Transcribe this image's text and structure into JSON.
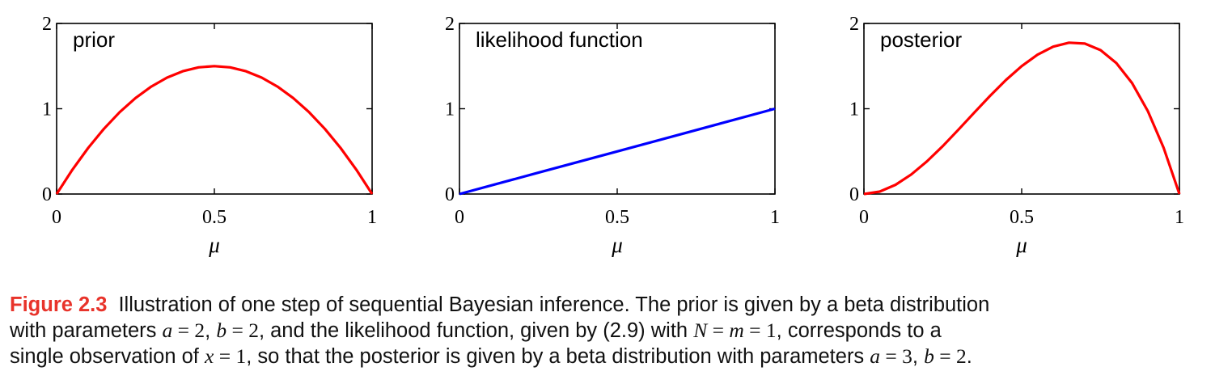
{
  "chart_data": [
    {
      "type": "line",
      "title": "prior",
      "xlabel": "μ",
      "xlim": [
        0,
        1
      ],
      "ylim": [
        0,
        2
      ],
      "xticks": [
        "0",
        "0.5",
        "1"
      ],
      "yticks": [
        "0",
        "1",
        "2"
      ],
      "color": "#ff0000",
      "series": [
        {
          "x": [
            0,
            0.05,
            0.1,
            0.15,
            0.2,
            0.25,
            0.3,
            0.35,
            0.4,
            0.45,
            0.5,
            0.55,
            0.6,
            0.65,
            0.7,
            0.75,
            0.8,
            0.85,
            0.9,
            0.95,
            1
          ],
          "y": [
            0,
            0.285,
            0.54,
            0.765,
            0.96,
            1.125,
            1.26,
            1.365,
            1.44,
            1.485,
            1.5,
            1.485,
            1.44,
            1.365,
            1.26,
            1.125,
            0.96,
            0.765,
            0.54,
            0.285,
            0
          ]
        }
      ]
    },
    {
      "type": "line",
      "title": "likelihood function",
      "xlabel": "μ",
      "xlim": [
        0,
        1
      ],
      "ylim": [
        0,
        2
      ],
      "xticks": [
        "0",
        "0.5",
        "1"
      ],
      "yticks": [
        "0",
        "1",
        "2"
      ],
      "color": "#0000ff",
      "series": [
        {
          "x": [
            0,
            0.25,
            0.5,
            0.75,
            1
          ],
          "y": [
            0,
            0.25,
            0.5,
            0.75,
            1
          ]
        }
      ]
    },
    {
      "type": "line",
      "title": "posterior",
      "xlabel": "μ",
      "xlim": [
        0,
        1
      ],
      "ylim": [
        0,
        2
      ],
      "xticks": [
        "0",
        "0.5",
        "1"
      ],
      "yticks": [
        "0",
        "1",
        "2"
      ],
      "color": "#ff0000",
      "series": [
        {
          "x": [
            0,
            0.05,
            0.1,
            0.15,
            0.2,
            0.25,
            0.3,
            0.35,
            0.4,
            0.45,
            0.5,
            0.55,
            0.6,
            0.65,
            0.7,
            0.75,
            0.8,
            0.85,
            0.9,
            0.95,
            1
          ],
          "y": [
            0,
            0.0285,
            0.108,
            0.2295,
            0.384,
            0.5625,
            0.756,
            0.9555,
            1.152,
            1.3365,
            1.5,
            1.6335,
            1.728,
            1.7745,
            1.764,
            1.6875,
            1.536,
            1.3005,
            0.972,
            0.5415,
            0
          ]
        }
      ]
    }
  ],
  "caption": {
    "label": "Figure 2.3",
    "line1": "Illustration of one step of sequential Bayesian inference. The prior is given by a beta distribution",
    "line2_a": "with parameters ",
    "line2_m1": "a",
    "line2_eq1": " = ",
    "line2_n1": "2",
    "line2_b": ", ",
    "line2_m2": "b",
    "line2_eq2": " = ",
    "line2_n2": "2",
    "line2_c": ", and the likelihood function, given by (2.9) with ",
    "line2_m3": "N",
    "line2_eq3": " = ",
    "line2_m4": "m",
    "line2_eq4": " = ",
    "line2_n3": "1",
    "line2_d": ", corresponds to a",
    "line3_a": "single observation of ",
    "line3_m1": "x",
    "line3_eq1": " = ",
    "line3_n1": "1",
    "line3_b": ", so that the posterior is given by a beta distribution with parameters ",
    "line3_m2": "a",
    "line3_eq2": " = ",
    "line3_n2": "3",
    "line3_c": ", ",
    "line3_m3": "b",
    "line3_eq3": " = ",
    "line3_n3": "2",
    "line3_d": "."
  }
}
